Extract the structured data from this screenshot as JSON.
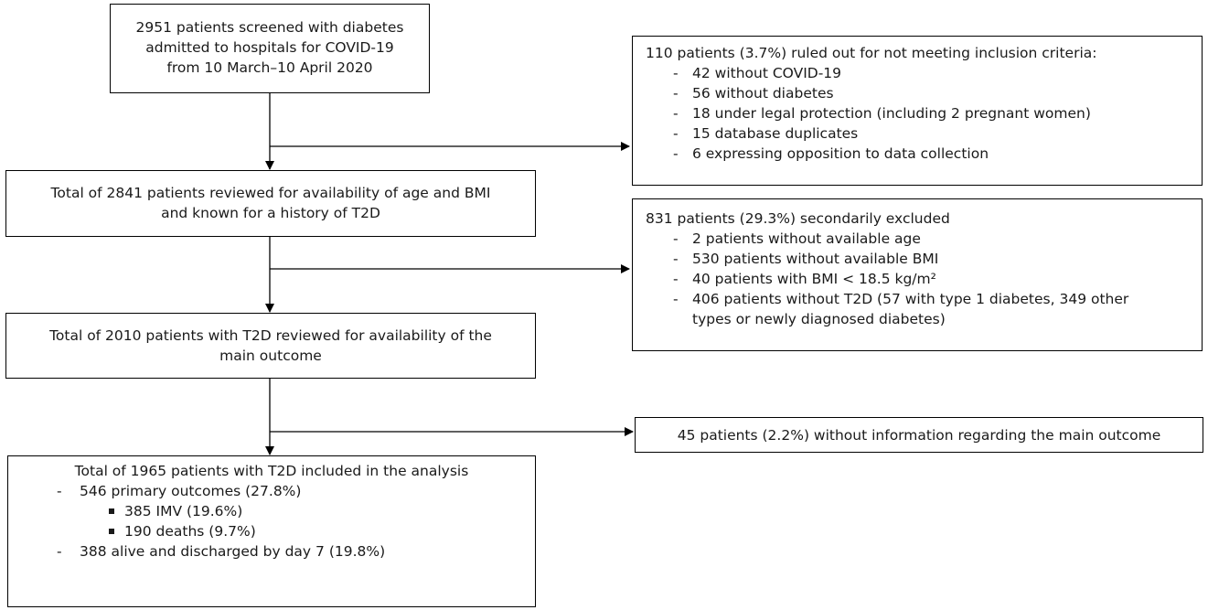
{
  "box1": {
    "lines": [
      "2951 patients screened with diabetes",
      "admitted to hospitals for COVID-19",
      "from 10 March–10 April 2020"
    ]
  },
  "exclusion1": {
    "title": "110 patients (3.7%) ruled out for not meeting inclusion criteria:",
    "items": [
      "42 without COVID-19",
      "56 without diabetes",
      "18 under legal protection (including 2 pregnant women)",
      "15 database duplicates",
      "6 expressing opposition to data collection"
    ]
  },
  "box2": {
    "lines": [
      "Total of 2841 patients reviewed for availability of age and BMI",
      "and known for a history of T2D"
    ]
  },
  "exclusion2": {
    "title": "831 patients (29.3%) secondarily excluded",
    "items": [
      "2 patients without available age",
      "530 patients without available BMI",
      "40 patients with BMI < 18.5 kg/m²",
      "406 patients without T2D (57 with type 1 diabetes, 349 other",
      "types or newly diagnosed diabetes)"
    ]
  },
  "box3": {
    "lines": [
      "Total of 2010 patients with T2D reviewed for availability of the",
      "main outcome"
    ]
  },
  "exclusion3": {
    "title": "45 patients (2.2%) without information regarding the main outcome"
  },
  "box4": {
    "title": "Total of 1965 patients with T2D included in the analysis",
    "item1": "546 primary outcomes (27.8%)",
    "sub1": "385 IMV (19.6%)",
    "sub2": "190 deaths (9.7%)",
    "item2": "388 alive and discharged by day 7 (19.8%)"
  },
  "dash": "-"
}
